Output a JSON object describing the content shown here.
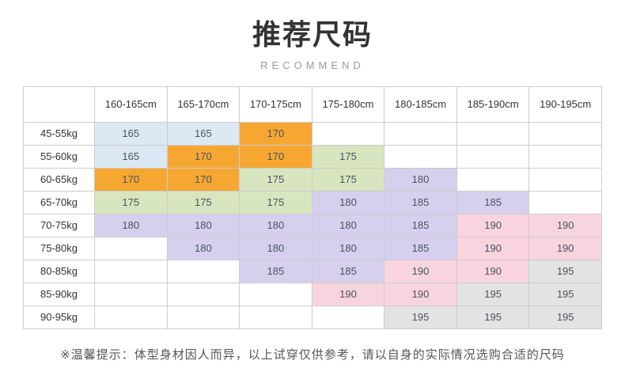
{
  "header": {
    "title": "推荐尺码",
    "subtitle": "RECOMMEND"
  },
  "chart_data": {
    "type": "table",
    "title": "推荐尺码",
    "subtitle": "RECOMMEND",
    "corner_label": "",
    "columns": [
      "160-165cm",
      "165-170cm",
      "170-175cm",
      "175-180cm",
      "180-185cm",
      "185-190cm",
      "190-195cm"
    ],
    "row_labels": [
      "45-55kg",
      "55-60kg",
      "60-65kg",
      "65-70kg",
      "70-75kg",
      "75-80kg",
      "80-85kg",
      "85-90kg",
      "90-95kg"
    ],
    "rows": [
      {
        "label": "45-55kg",
        "cells": [
          {
            "size": "165",
            "color": "blue"
          },
          {
            "size": "165",
            "color": "blue"
          },
          {
            "size": "170",
            "color": "orange"
          },
          null,
          null,
          null,
          null
        ]
      },
      {
        "label": "55-60kg",
        "cells": [
          {
            "size": "165",
            "color": "blue"
          },
          {
            "size": "170",
            "color": "orange"
          },
          {
            "size": "170",
            "color": "orange"
          },
          {
            "size": "175",
            "color": "green"
          },
          null,
          null,
          null
        ]
      },
      {
        "label": "60-65kg",
        "cells": [
          {
            "size": "170",
            "color": "orange"
          },
          {
            "size": "170",
            "color": "orange"
          },
          {
            "size": "175",
            "color": "green"
          },
          {
            "size": "175",
            "color": "green"
          },
          {
            "size": "180",
            "color": "purple"
          },
          null,
          null
        ]
      },
      {
        "label": "65-70kg",
        "cells": [
          {
            "size": "175",
            "color": "green"
          },
          {
            "size": "175",
            "color": "green"
          },
          {
            "size": "175",
            "color": "green"
          },
          {
            "size": "180",
            "color": "purple"
          },
          {
            "size": "185",
            "color": "purple"
          },
          {
            "size": "185",
            "color": "purple"
          },
          null
        ]
      },
      {
        "label": "70-75kg",
        "cells": [
          {
            "size": "180",
            "color": "purple"
          },
          {
            "size": "180",
            "color": "purple"
          },
          {
            "size": "180",
            "color": "purple"
          },
          {
            "size": "180",
            "color": "purple"
          },
          {
            "size": "185",
            "color": "purple"
          },
          {
            "size": "190",
            "color": "pink"
          },
          {
            "size": "190",
            "color": "pink"
          }
        ]
      },
      {
        "label": "75-80kg",
        "cells": [
          null,
          {
            "size": "180",
            "color": "purple"
          },
          {
            "size": "180",
            "color": "purple"
          },
          {
            "size": "180",
            "color": "purple"
          },
          {
            "size": "185",
            "color": "purple"
          },
          {
            "size": "190",
            "color": "pink"
          },
          {
            "size": "190",
            "color": "pink"
          }
        ]
      },
      {
        "label": "80-85kg",
        "cells": [
          null,
          null,
          {
            "size": "185",
            "color": "purple"
          },
          {
            "size": "185",
            "color": "purple"
          },
          {
            "size": "190",
            "color": "pink"
          },
          {
            "size": "190",
            "color": "pink"
          },
          {
            "size": "195",
            "color": "gray"
          }
        ]
      },
      {
        "label": "85-90kg",
        "cells": [
          null,
          null,
          null,
          {
            "size": "190",
            "color": "pink"
          },
          {
            "size": "190",
            "color": "pink"
          },
          {
            "size": "195",
            "color": "gray"
          },
          {
            "size": "195",
            "color": "gray"
          }
        ]
      },
      {
        "label": "90-95kg",
        "cells": [
          null,
          null,
          null,
          null,
          {
            "size": "195",
            "color": "gray"
          },
          {
            "size": "195",
            "color": "gray"
          },
          {
            "size": "195",
            "color": "gray"
          }
        ]
      }
    ],
    "legend_colors": {
      "blue": "#dce8f4",
      "orange": "#f6a732",
      "green": "#d8e6c0",
      "purple": "#d7cfee",
      "pink": "#f8d5de",
      "gray": "#e3e3e3"
    }
  },
  "footer": {
    "note": "※温馨提示：体型身材因人而异，以上试穿仅供参考，请以自身的实际情况选购合适的尺码"
  }
}
